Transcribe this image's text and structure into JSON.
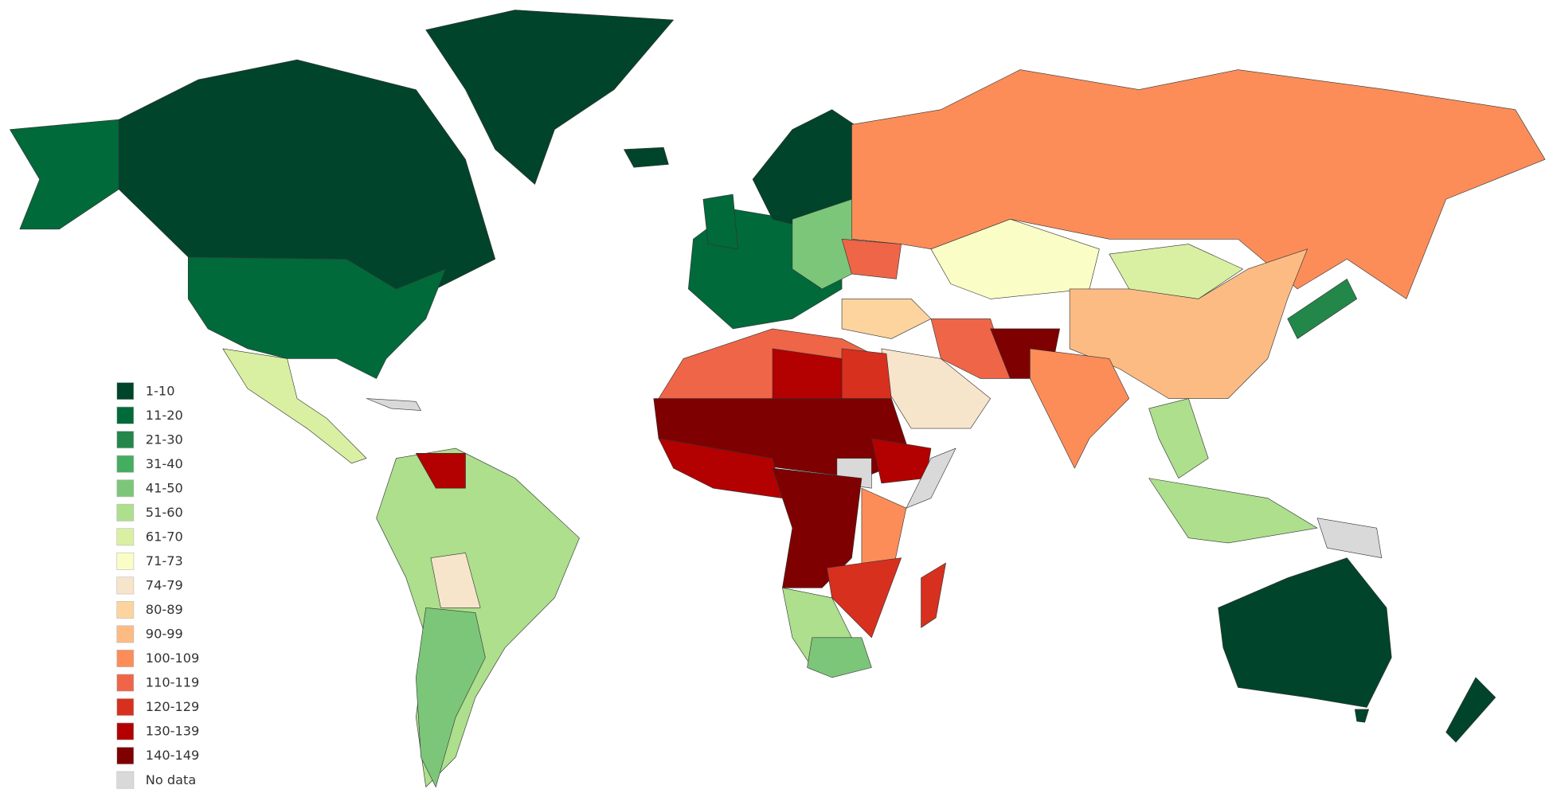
{
  "legend": {
    "items": [
      {
        "label": "1-10",
        "color": "#00442b"
      },
      {
        "label": "11-20",
        "color": "#006a3a"
      },
      {
        "label": "21-30",
        "color": "#23874a"
      },
      {
        "label": "31-40",
        "color": "#45ad5f"
      },
      {
        "label": "41-50",
        "color": "#7cc67a"
      },
      {
        "label": "51-60",
        "color": "#addf8d"
      },
      {
        "label": "61-70",
        "color": "#d9f0a3"
      },
      {
        "label": "71-73",
        "color": "#fbfdc6"
      },
      {
        "label": "74-79",
        "color": "#f7e5cb"
      },
      {
        "label": "80-89",
        "color": "#fdd49e"
      },
      {
        "label": "90-99",
        "color": "#fdbb84"
      },
      {
        "label": "100-109",
        "color": "#fc8d59"
      },
      {
        "label": "110-119",
        "color": "#ef6548"
      },
      {
        "label": "120-129",
        "color": "#d7301f"
      },
      {
        "label": "130-139",
        "color": "#b30000"
      },
      {
        "label": "140-149",
        "color": "#7f0000"
      },
      {
        "label": "No data",
        "color": "#d9d9d9"
      }
    ]
  }
}
